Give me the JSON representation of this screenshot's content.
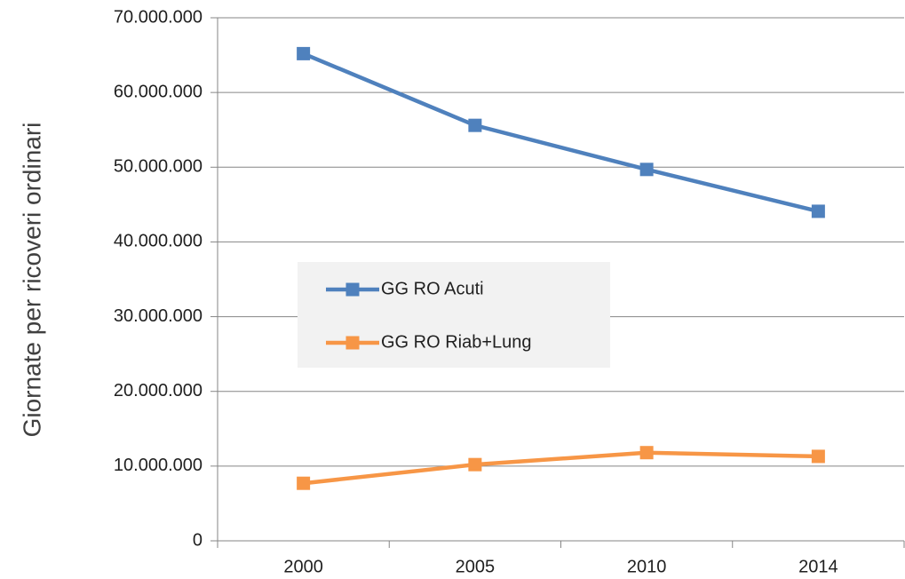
{
  "chart_data": {
    "type": "line",
    "y_axis_label": "Giornate per ricoveri ordinari",
    "categories": [
      "2000",
      "2005",
      "2010",
      "2014"
    ],
    "series": [
      {
        "name": "GG RO Acuti",
        "color": "#4f81bd",
        "values": [
          65200000,
          55600000,
          49700000,
          44100000
        ]
      },
      {
        "name": "GG RO Riab+Lung",
        "color": "#f79646",
        "values": [
          7700000,
          10200000,
          11800000,
          11300000
        ]
      }
    ],
    "ylim": [
      0,
      70000000
    ],
    "yticks": [
      0,
      {
        "value": 10000000,
        "label": "10.000.000"
      },
      {
        "value": 20000000,
        "label": "20.000.000"
      },
      {
        "value": 30000000,
        "label": "30.000.000"
      },
      {
        "value": 40000000,
        "label": "40.000.000"
      },
      {
        "value": 50000000,
        "label": "50.000.000"
      },
      {
        "value": 60000000,
        "label": "60.000.000"
      },
      {
        "value": 70000000,
        "label": "70.000.000"
      }
    ],
    "grid": true,
    "legend": "center"
  }
}
